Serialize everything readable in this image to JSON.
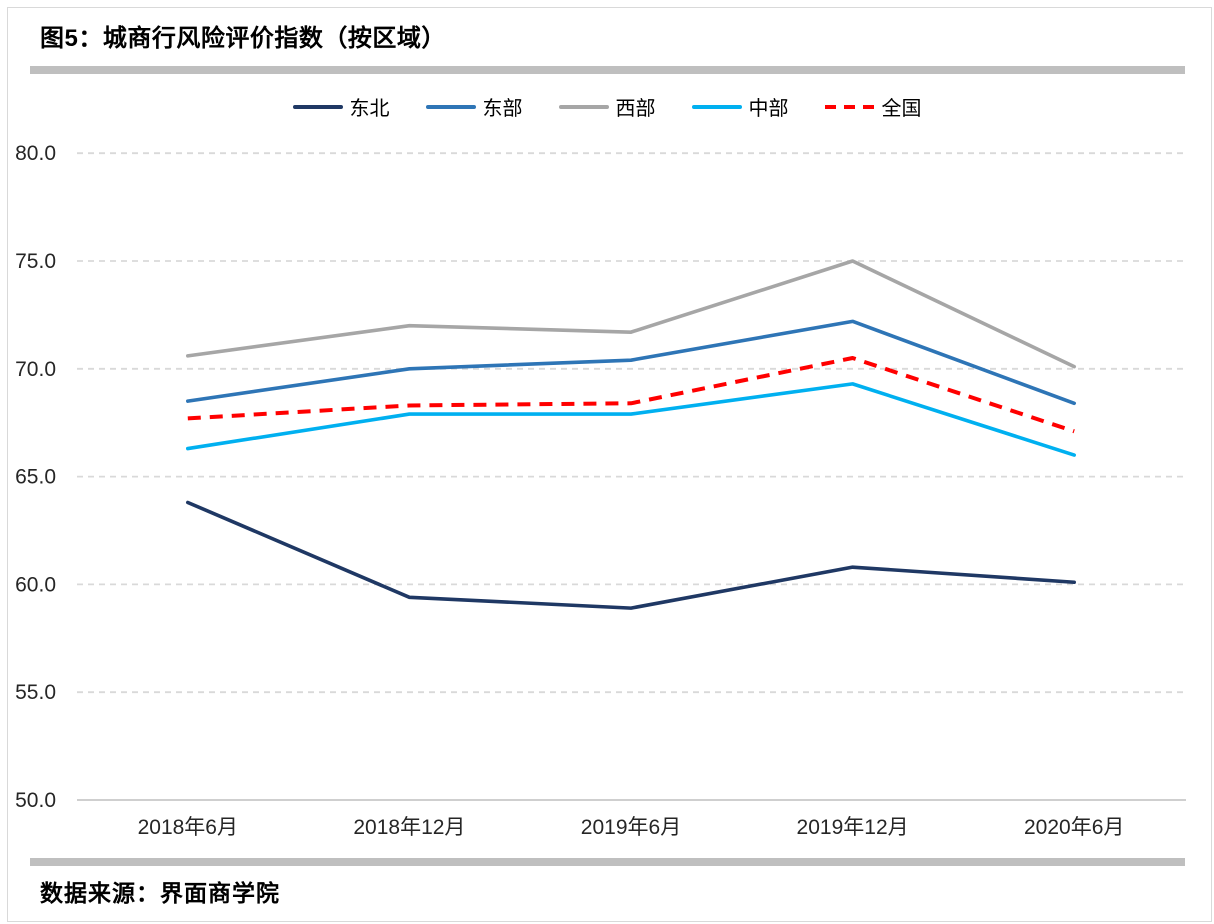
{
  "page": {
    "title": "图5：城商行风险评价指数（按区域）",
    "source": "数据来源：界面商学院"
  },
  "colors": {
    "divider_bar": "#BFBFBF",
    "gridline": "#D9D9D9",
    "axis_line": "#BFBFBF",
    "tick_text": "#262626"
  },
  "chart_data": {
    "type": "line",
    "title": "图5：城商行风险评价指数（按区域）",
    "xlabel": "",
    "ylabel": "",
    "ylim": [
      50,
      80
    ],
    "ytick_step": 5,
    "ytick_labels": [
      "50.0",
      "55.0",
      "60.0",
      "65.0",
      "70.0",
      "75.0",
      "80.0"
    ],
    "grid": "horizontal-dashed",
    "legend_position": "top-center",
    "categories": [
      "2018年6月",
      "2018年12月",
      "2019年6月",
      "2019年12月",
      "2020年6月"
    ],
    "series": [
      {
        "name": "东北",
        "key": "northeast",
        "color": "#1F3864",
        "style": "solid",
        "values": [
          63.8,
          59.4,
          58.9,
          60.8,
          60.1
        ]
      },
      {
        "name": "东部",
        "key": "east",
        "color": "#2E75B6",
        "style": "solid",
        "values": [
          68.5,
          70.0,
          70.4,
          72.2,
          68.4
        ]
      },
      {
        "name": "西部",
        "key": "west",
        "color": "#A6A6A6",
        "style": "solid",
        "values": [
          70.6,
          72.0,
          71.7,
          75.0,
          70.1
        ]
      },
      {
        "name": "中部",
        "key": "central",
        "color": "#00B0F0",
        "style": "solid",
        "values": [
          66.3,
          67.9,
          67.9,
          69.3,
          66.0
        ]
      },
      {
        "name": "全国",
        "key": "national",
        "color": "#FF0000",
        "style": "dashed",
        "values": [
          67.7,
          68.3,
          68.4,
          70.5,
          67.1
        ]
      }
    ]
  }
}
